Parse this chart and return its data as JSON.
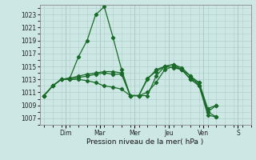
{
  "xlabel": "Pression niveau de la mer( hPa )",
  "bg_color": "#cde8e4",
  "grid_color": "#aecfcb",
  "line_color": "#1a6b2a",
  "ylim": [
    1006.0,
    1024.5
  ],
  "yticks": [
    1007,
    1009,
    1011,
    1013,
    1015,
    1017,
    1019,
    1021,
    1023
  ],
  "day_labels": [
    "Dim",
    "Mar",
    "Mer",
    "Jeu",
    "Ven",
    "S"
  ],
  "day_positions": [
    2.5,
    6.5,
    10.5,
    14.5,
    18.5,
    22.5
  ],
  "xlim": [
    -0.5,
    24
  ],
  "lines": [
    {
      "x": [
        0,
        1,
        2,
        3,
        4,
        5,
        6,
        7,
        8,
        9,
        10,
        11,
        12,
        13,
        14,
        15,
        16,
        17,
        18,
        19,
        20
      ],
      "y": [
        1010.5,
        1012.0,
        1013.0,
        1013.2,
        1016.5,
        1019.0,
        1023.0,
        1024.2,
        1019.5,
        1014.5,
        1010.5,
        1010.5,
        1010.5,
        1013.5,
        1015.0,
        1015.3,
        1014.8,
        1013.5,
        1012.5,
        1008.5,
        1009.0
      ]
    },
    {
      "x": [
        0,
        1,
        2,
        3,
        4,
        5,
        6,
        7,
        8,
        9,
        10,
        11,
        12,
        13,
        14,
        15,
        16,
        17,
        18,
        19,
        20
      ],
      "y": [
        1010.5,
        1012.0,
        1013.0,
        1013.2,
        1013.5,
        1013.8,
        1014.0,
        1014.2,
        1014.2,
        1014.0,
        1010.5,
        1010.5,
        1013.0,
        1014.5,
        1015.0,
        1014.8,
        1014.5,
        1013.5,
        1012.0,
        1007.5,
        1007.2
      ]
    },
    {
      "x": [
        0,
        1,
        2,
        3,
        4,
        5,
        6,
        7,
        8,
        9,
        10,
        11,
        12,
        13,
        14,
        15,
        16,
        17,
        18,
        19,
        20
      ],
      "y": [
        1010.5,
        1012.0,
        1013.0,
        1013.0,
        1013.3,
        1013.5,
        1013.8,
        1014.0,
        1013.8,
        1013.8,
        1010.5,
        1010.5,
        1013.2,
        1014.2,
        1015.0,
        1015.3,
        1014.5,
        1013.0,
        1012.5,
        1008.0,
        1009.0
      ]
    },
    {
      "x": [
        0,
        1,
        2,
        3,
        4,
        5,
        6,
        7,
        8,
        9,
        10,
        11,
        12,
        13,
        14,
        15,
        16,
        17,
        18,
        19,
        20
      ],
      "y": [
        1010.5,
        1012.0,
        1013.0,
        1013.0,
        1013.0,
        1012.8,
        1012.5,
        1012.0,
        1011.8,
        1011.5,
        1010.5,
        1010.5,
        1011.0,
        1012.5,
        1014.5,
        1015.0,
        1014.5,
        1013.0,
        1012.0,
        1008.0,
        1007.2
      ]
    }
  ]
}
